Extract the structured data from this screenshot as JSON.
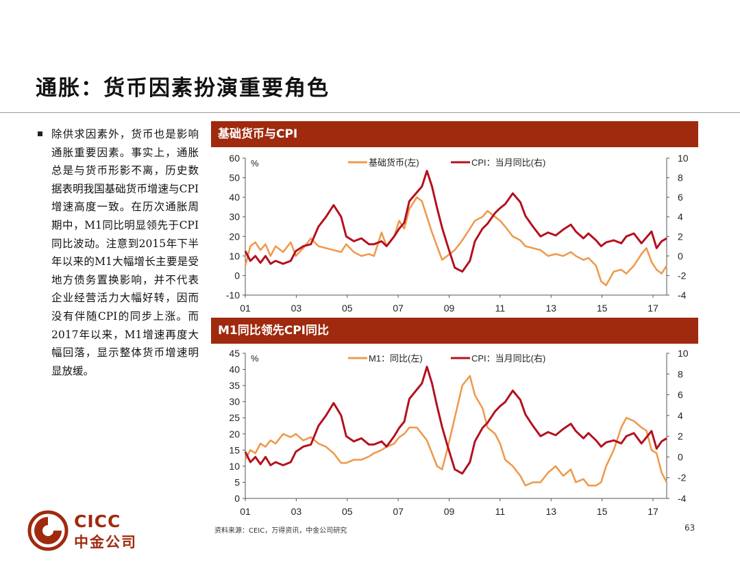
{
  "page": {
    "title": "通胀：货币因素扮演重要角色",
    "bullet": "除供求因素外，货币也是影响通胀重要因素。事实上，通胀总是与货币形影不离，历史数据表明我国基础货币增速与CPI增速高度一致。在历次通胀周期中，M1同比明显领先于CPI同比波动。注意到2015年下半年以来的M1大幅增长主要是受地方债务置换影响，并不代表企业经营活力大幅好转，因而没有伴随CPI的同步上涨。而2017年以来，M1增速再度大幅回落，显示整体货币增速明显放缓。",
    "source": "资料来源：CEIC，万得资讯，中金公司研究",
    "page_number": "63",
    "logo": {
      "en": "CICC",
      "cn": "中金公司"
    }
  },
  "chart_data": [
    {
      "type": "line",
      "title": "基础货币与CPI",
      "left_unit": "%",
      "left_ylim": [
        -10,
        60
      ],
      "left_ticks": [
        "60",
        "50",
        "40",
        "30",
        "20",
        "10",
        "0",
        "-10"
      ],
      "right_ylim": [
        -4,
        10
      ],
      "right_ticks": [
        "10",
        "8",
        "6",
        "4",
        "2",
        "0",
        "-2",
        "-4"
      ],
      "x_ticks": [
        "01",
        "03",
        "05",
        "07",
        "09",
        "11",
        "13",
        "15",
        "17"
      ],
      "x_range": [
        2001.0,
        2017.7
      ],
      "series": [
        {
          "name": "基础货币(左)",
          "axis": "left",
          "color": "#ee9a4d",
          "x": [
            2001.0,
            2001.2,
            2001.4,
            2001.6,
            2001.8,
            2002.0,
            2002.2,
            2002.5,
            2002.8,
            2003.0,
            2003.3,
            2003.6,
            2003.9,
            2004.2,
            2004.5,
            2004.8,
            2005.0,
            2005.3,
            2005.6,
            2005.9,
            2006.1,
            2006.4,
            2006.6,
            2006.9,
            2007.1,
            2007.3,
            2007.5,
            2007.8,
            2008.0,
            2008.2,
            2008.4,
            2008.6,
            2008.8,
            2009.0,
            2009.3,
            2009.6,
            2009.9,
            2010.1,
            2010.4,
            2010.6,
            2010.9,
            2011.1,
            2011.3,
            2011.6,
            2011.9,
            2012.1,
            2012.4,
            2012.7,
            2013.0,
            2013.3,
            2013.6,
            2013.9,
            2014.1,
            2014.4,
            2014.6,
            2014.9,
            2015.1,
            2015.3,
            2015.6,
            2015.9,
            2016.1,
            2016.4,
            2016.7,
            2016.9,
            2017.1,
            2017.3,
            2017.5,
            2017.7
          ],
          "values": [
            5,
            15,
            17,
            13,
            16,
            10,
            15,
            12,
            17,
            10,
            14,
            19,
            15,
            14,
            13,
            12,
            16,
            12,
            10,
            11,
            10,
            22,
            15,
            20,
            28,
            24,
            34,
            40,
            38,
            30,
            22,
            15,
            8,
            10,
            13,
            18,
            24,
            28,
            30,
            33,
            30,
            28,
            25,
            20,
            18,
            15,
            14,
            13,
            10,
            11,
            10,
            12,
            10,
            8,
            9,
            5,
            -3,
            -5,
            2,
            3,
            1,
            5,
            11,
            14,
            7,
            3,
            1,
            5
          ]
        },
        {
          "name": "CPI：当月同比(右)",
          "axis": "right",
          "color": "#b4101e",
          "x": [
            2001.0,
            2001.2,
            2001.4,
            2001.6,
            2001.8,
            2002.0,
            2002.2,
            2002.5,
            2002.8,
            2003.0,
            2003.3,
            2003.6,
            2003.9,
            2004.2,
            2004.5,
            2004.8,
            2005.0,
            2005.3,
            2005.6,
            2005.9,
            2006.1,
            2006.4,
            2006.6,
            2006.9,
            2007.1,
            2007.3,
            2007.5,
            2007.8,
            2008.0,
            2008.2,
            2008.4,
            2008.6,
            2008.8,
            2009.0,
            2009.3,
            2009.6,
            2009.9,
            2010.1,
            2010.4,
            2010.6,
            2010.9,
            2011.1,
            2011.3,
            2011.6,
            2011.9,
            2012.1,
            2012.4,
            2012.7,
            2013.0,
            2013.3,
            2013.6,
            2013.9,
            2014.1,
            2014.4,
            2014.6,
            2014.9,
            2015.1,
            2015.3,
            2015.6,
            2015.9,
            2016.1,
            2016.4,
            2016.7,
            2016.9,
            2017.1,
            2017.3,
            2017.5,
            2017.7
          ],
          "values": [
            0.5,
            -0.5,
            0,
            -0.7,
            0,
            -0.8,
            -0.5,
            -0.8,
            -0.5,
            0.5,
            1,
            1.2,
            3,
            4,
            5.2,
            4,
            2,
            1.5,
            1.8,
            1.2,
            1.2,
            1.5,
            1,
            2,
            2.8,
            3.4,
            5.6,
            6.5,
            7.1,
            8.7,
            7.1,
            4.9,
            2.9,
            1.2,
            -1.2,
            -1.6,
            -0.5,
            1.5,
            2.8,
            3.3,
            4.4,
            4.9,
            5.3,
            6.4,
            5.5,
            4.1,
            3.0,
            2.0,
            2.4,
            2.1,
            2.7,
            3.2,
            2.5,
            1.8,
            2.3,
            1.6,
            1.0,
            1.4,
            1.6,
            1.3,
            2.0,
            2.3,
            1.3,
            1.9,
            2.5,
            0.8,
            1.5,
            1.8
          ]
        }
      ]
    },
    {
      "type": "line",
      "title": "M1同比领先CPI同比",
      "left_unit": "%",
      "left_ylim": [
        0,
        45
      ],
      "left_ticks": [
        "45",
        "40",
        "35",
        "30",
        "25",
        "20",
        "15",
        "10",
        "5",
        "0"
      ],
      "right_ylim": [
        -4,
        10
      ],
      "right_ticks": [
        "10",
        "8",
        "6",
        "4",
        "2",
        "0",
        "-2",
        "-4"
      ],
      "x_ticks": [
        "01",
        "03",
        "05",
        "07",
        "09",
        "11",
        "13",
        "15",
        "17"
      ],
      "x_range": [
        2001.0,
        2017.7
      ],
      "series": [
        {
          "name": "M1：同比(左)",
          "axis": "left",
          "color": "#ee9a4d",
          "x": [
            2001.0,
            2001.2,
            2001.4,
            2001.6,
            2001.8,
            2002.0,
            2002.2,
            2002.5,
            2002.8,
            2003.0,
            2003.3,
            2003.6,
            2003.9,
            2004.2,
            2004.5,
            2004.8,
            2005.0,
            2005.3,
            2005.6,
            2005.9,
            2006.1,
            2006.4,
            2006.6,
            2006.9,
            2007.1,
            2007.3,
            2007.5,
            2007.8,
            2008.0,
            2008.2,
            2008.4,
            2008.6,
            2008.8,
            2009.0,
            2009.3,
            2009.6,
            2009.9,
            2010.1,
            2010.4,
            2010.6,
            2010.9,
            2011.1,
            2011.3,
            2011.6,
            2011.9,
            2012.1,
            2012.4,
            2012.7,
            2013.0,
            2013.3,
            2013.6,
            2013.9,
            2014.1,
            2014.4,
            2014.6,
            2014.9,
            2015.1,
            2015.3,
            2015.6,
            2015.9,
            2016.1,
            2016.4,
            2016.7,
            2016.9,
            2017.1,
            2017.3,
            2017.5,
            2017.7
          ],
          "values": [
            12,
            15,
            14,
            17,
            16,
            18,
            17,
            20,
            19,
            20,
            18,
            19,
            17,
            16,
            14,
            11,
            11,
            12,
            12,
            13,
            14,
            15,
            16,
            17,
            19,
            20,
            22,
            22,
            20,
            18,
            14,
            10,
            9,
            15,
            25,
            35,
            38,
            32,
            28,
            22,
            20,
            17,
            12,
            10,
            7,
            4,
            5,
            5,
            8,
            10,
            7,
            9,
            5,
            6,
            4,
            4,
            5,
            10,
            15,
            22,
            25,
            24,
            22,
            21,
            15,
            14,
            8,
            5
          ]
        },
        {
          "name": "CPI：当月同比(右)",
          "axis": "right",
          "color": "#b4101e",
          "x": [
            2001.0,
            2001.2,
            2001.4,
            2001.6,
            2001.8,
            2002.0,
            2002.2,
            2002.5,
            2002.8,
            2003.0,
            2003.3,
            2003.6,
            2003.9,
            2004.2,
            2004.5,
            2004.8,
            2005.0,
            2005.3,
            2005.6,
            2005.9,
            2006.1,
            2006.4,
            2006.6,
            2006.9,
            2007.1,
            2007.3,
            2007.5,
            2007.8,
            2008.0,
            2008.2,
            2008.4,
            2008.6,
            2008.8,
            2009.0,
            2009.3,
            2009.6,
            2009.9,
            2010.1,
            2010.4,
            2010.6,
            2010.9,
            2011.1,
            2011.3,
            2011.6,
            2011.9,
            2012.1,
            2012.4,
            2012.7,
            2013.0,
            2013.3,
            2013.6,
            2013.9,
            2014.1,
            2014.4,
            2014.6,
            2014.9,
            2015.1,
            2015.3,
            2015.6,
            2015.9,
            2016.1,
            2016.4,
            2016.7,
            2016.9,
            2017.1,
            2017.3,
            2017.5,
            2017.7
          ],
          "values": [
            0.5,
            -0.5,
            0,
            -0.7,
            0,
            -0.8,
            -0.5,
            -0.8,
            -0.5,
            0.5,
            1,
            1.2,
            3,
            4,
            5.2,
            4,
            2,
            1.5,
            1.8,
            1.2,
            1.2,
            1.5,
            1,
            2,
            2.8,
            3.4,
            5.6,
            6.5,
            7.1,
            8.7,
            7.1,
            4.9,
            2.9,
            1.2,
            -1.2,
            -1.6,
            -0.5,
            1.5,
            2.8,
            3.3,
            4.4,
            4.9,
            5.3,
            6.4,
            5.5,
            4.1,
            3.0,
            2.0,
            2.4,
            2.1,
            2.7,
            3.2,
            2.5,
            1.8,
            2.3,
            1.6,
            1.0,
            1.4,
            1.6,
            1.3,
            2.0,
            2.3,
            1.3,
            1.9,
            2.5,
            0.8,
            1.5,
            1.8
          ]
        }
      ]
    }
  ]
}
